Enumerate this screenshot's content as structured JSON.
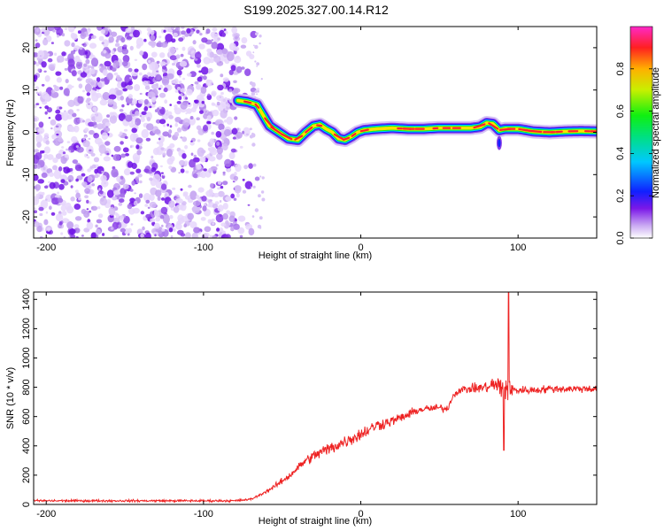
{
  "title": "S199.2025.327.00.14.R12",
  "chart_data": [
    {
      "type": "heatmap",
      "title": "S199.2025.327.00.14.R12",
      "xlabel": "Height of straight line (km)",
      "ylabel": "Frequency (Hz)",
      "xlim": [
        -208,
        150
      ],
      "ylim": [
        -25,
        25
      ],
      "xticks": [
        -200,
        -100,
        0,
        100
      ],
      "yticks": [
        -20,
        -10,
        0,
        10,
        20
      ],
      "noise_region_x": [
        -208,
        -65
      ],
      "ridge": {
        "x": [
          -78,
          -72,
          -66,
          -62,
          -58,
          -52,
          -46,
          -40,
          -35,
          -30,
          -26,
          -22,
          -18,
          -14,
          -10,
          -6,
          -2,
          2,
          10,
          20,
          30,
          40,
          50,
          60,
          70,
          76,
          80,
          84,
          88,
          92,
          100,
          110,
          120,
          130,
          140,
          150
        ],
        "freq": [
          7.5,
          7.2,
          6.5,
          4.0,
          1.5,
          0.0,
          -1.5,
          -1.8,
          0.0,
          1.5,
          1.8,
          0.8,
          0.0,
          -1.5,
          -1.8,
          -1.0,
          0.0,
          0.5,
          0.8,
          1.0,
          0.8,
          0.8,
          1.0,
          1.0,
          1.0,
          1.3,
          2.2,
          2.0,
          0.5,
          0.8,
          0.8,
          0.2,
          0.0,
          0.2,
          0.3,
          0.2
        ]
      },
      "colorbar": {
        "label": "Normalized spectral amplitude",
        "ticks": [
          "0.0",
          "0.2",
          "0.4",
          "0.6",
          "0.8"
        ],
        "range": [
          0,
          1
        ]
      }
    },
    {
      "type": "line",
      "xlabel": "Height of straight line (km)",
      "ylabel": "SNR (10 * v/v)",
      "xlim": [
        -208,
        150
      ],
      "ylim": [
        0,
        1450
      ],
      "xticks": [
        -200,
        -100,
        0,
        100
      ],
      "yticks": [
        0,
        200,
        400,
        600,
        800,
        1000,
        1200,
        1400
      ],
      "series": [
        {
          "name": "SNR",
          "color": "#ee2222",
          "x": [
            -208,
            -150,
            -100,
            -80,
            -70,
            -65,
            -60,
            -55,
            -50,
            -45,
            -40,
            -35,
            -30,
            -25,
            -20,
            -10,
            0,
            10,
            20,
            30,
            35,
            40,
            50,
            55,
            58,
            62,
            70,
            80,
            85,
            88,
            90,
            92,
            94,
            96,
            100,
            110,
            120,
            130,
            140,
            150
          ],
          "values": [
            25,
            25,
            25,
            25,
            35,
            60,
            90,
            120,
            160,
            200,
            250,
            300,
            330,
            360,
            380,
            430,
            480,
            540,
            570,
            610,
            640,
            650,
            660,
            650,
            730,
            780,
            790,
            800,
            820,
            800,
            790,
            790,
            780,
            780,
            780,
            780,
            790,
            790,
            790,
            790
          ],
          "noise": [
            12,
            12,
            12,
            12,
            12,
            12,
            18,
            28,
            35,
            40,
            45,
            50,
            60,
            70,
            70,
            70,
            70,
            65,
            55,
            45,
            45,
            40,
            40,
            40,
            40,
            40,
            45,
            60,
            90,
            130,
            170,
            150,
            110,
            80,
            45,
            40,
            40,
            40,
            40,
            40
          ]
        }
      ],
      "spikes": [
        {
          "x": 94,
          "value": 1450
        },
        {
          "x": 91,
          "value": 370
        }
      ]
    }
  ]
}
